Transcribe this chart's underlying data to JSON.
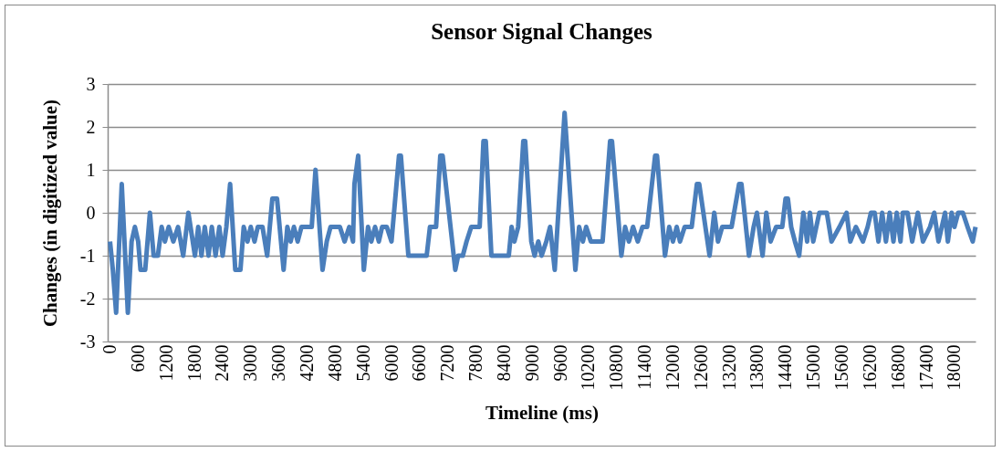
{
  "chart_data": {
    "type": "line",
    "title": "Sensor Signal Changes",
    "xlabel": "Timeline (ms)",
    "ylabel": "Changes (in digitized value)",
    "color": "#4a7ebb",
    "xlim": [
      -50,
      18450
    ],
    "xticks": [
      0,
      600,
      1200,
      1800,
      2400,
      3000,
      3600,
      4200,
      4800,
      5400,
      6000,
      6600,
      7200,
      7800,
      8400,
      9000,
      9600,
      10200,
      10800,
      11400,
      12000,
      12600,
      13200,
      13800,
      14400,
      15000,
      15600,
      16200,
      16800,
      17400,
      18000
    ],
    "ylim": [
      -3,
      3
    ],
    "yticks": [
      -3,
      -2,
      -1,
      0,
      1,
      2,
      3
    ],
    "grid": "y",
    "x": [
      0,
      60,
      130,
      250,
      380,
      460,
      530,
      600,
      650,
      750,
      850,
      930,
      1020,
      1100,
      1170,
      1250,
      1350,
      1450,
      1560,
      1670,
      1810,
      1880,
      1950,
      2020,
      2100,
      2170,
      2250,
      2330,
      2400,
      2480,
      2560,
      2670,
      2780,
      2850,
      2930,
      3000,
      3080,
      3150,
      3250,
      3350,
      3460,
      3560,
      3700,
      3780,
      3850,
      3920,
      4000,
      4080,
      4200,
      4300,
      4380,
      4530,
      4620,
      4700,
      4900,
      5000,
      5100,
      5180,
      5210,
      5290,
      5410,
      5500,
      5570,
      5650,
      5730,
      5800,
      5900,
      6000,
      6160,
      6200,
      6360,
      6750,
      6820,
      6950,
      7040,
      7090,
      7360,
      7420,
      7520,
      7600,
      7700,
      7880,
      7960,
      8010,
      8130,
      8500,
      8560,
      8620,
      8700,
      8810,
      8850,
      8980,
      9050,
      9130,
      9200,
      9300,
      9380,
      9480,
      9690,
      9920,
      10000,
      10080,
      10150,
      10250,
      10400,
      10500,
      10660,
      10700,
      10900,
      10980,
      11060,
      11150,
      11250,
      11350,
      11450,
      11620,
      11660,
      11830,
      11920,
      12000,
      12080,
      12150,
      12250,
      12400,
      12510,
      12560,
      12780,
      12880,
      12960,
      13050,
      13250,
      13410,
      13460,
      13620,
      13720,
      13790,
      13910,
      13990,
      14080,
      14200,
      14330,
      14400,
      14450,
      14520,
      14600,
      14690,
      14780,
      14860,
      14920,
      14990,
      15120,
      15280,
      15380,
      15550,
      15700,
      15780,
      15900,
      16050,
      16150,
      16220,
      16300,
      16380,
      16460,
      16540,
      16620,
      16700,
      16770,
      16850,
      16900,
      17000,
      17100,
      17220,
      17330,
      17480,
      17570,
      17660,
      17800,
      17860,
      17940,
      18000,
      18080,
      18180,
      18280,
      18390,
      18450
    ],
    "values": [
      -0.67,
      -1.33,
      -2.33,
      0.67,
      -2.33,
      -0.67,
      -0.33,
      -0.67,
      -1.33,
      -1.33,
      0,
      -1,
      -1,
      -0.33,
      -0.67,
      -0.33,
      -0.67,
      -0.33,
      -1,
      0,
      -1,
      -0.33,
      -1,
      -0.33,
      -1,
      -0.33,
      -1,
      -0.33,
      -1,
      -0.33,
      0.67,
      -1.33,
      -1.33,
      -0.33,
      -0.67,
      -0.33,
      -0.67,
      -0.33,
      -0.33,
      -1,
      0.33,
      0.33,
      -1.33,
      -0.33,
      -0.67,
      -0.33,
      -0.67,
      -0.33,
      -0.33,
      -0.33,
      1,
      -1.33,
      -0.67,
      -0.33,
      -0.33,
      -0.67,
      -0.33,
      -0.67,
      0.67,
      1.33,
      -1.33,
      -0.33,
      -0.67,
      -0.33,
      -0.67,
      -0.33,
      -0.33,
      -0.67,
      1.33,
      1.33,
      -1,
      -1,
      -0.33,
      -0.33,
      1.33,
      1.33,
      -1.33,
      -1,
      -1,
      -0.67,
      -0.33,
      -0.33,
      1.67,
      1.67,
      -1,
      -1,
      -0.33,
      -0.67,
      -0.33,
      1.67,
      1.67,
      -0.67,
      -1,
      -0.67,
      -1,
      -0.67,
      -0.33,
      -1.33,
      2.33,
      -1.33,
      -0.33,
      -0.67,
      -0.33,
      -0.67,
      -0.67,
      -0.67,
      1.67,
      1.67,
      -1,
      -0.33,
      -0.67,
      -0.33,
      -0.67,
      -0.33,
      -0.33,
      1.33,
      1.33,
      -1,
      -0.33,
      -0.67,
      -0.33,
      -0.67,
      -0.33,
      -0.33,
      0.67,
      0.67,
      -1,
      0,
      -0.67,
      -0.33,
      -0.33,
      0.67,
      0.67,
      -1,
      -0.33,
      0,
      -1,
      0,
      -0.67,
      -0.33,
      -0.33,
      0.33,
      0.33,
      -0.33,
      -0.67,
      -1,
      0,
      -0.67,
      0,
      -0.67,
      0,
      0,
      -0.67,
      -0.33,
      0,
      -0.67,
      -0.33,
      -0.67,
      -0.33,
      0,
      0,
      -0.67,
      0,
      -0.67,
      0,
      -0.67,
      0,
      -0.67,
      0,
      0,
      -0.67,
      0,
      -0.67,
      -0.33,
      0,
      -0.67,
      0,
      -0.67,
      0,
      -0.33,
      0,
      0,
      -0.33,
      -0.67,
      -0.33
    ]
  }
}
